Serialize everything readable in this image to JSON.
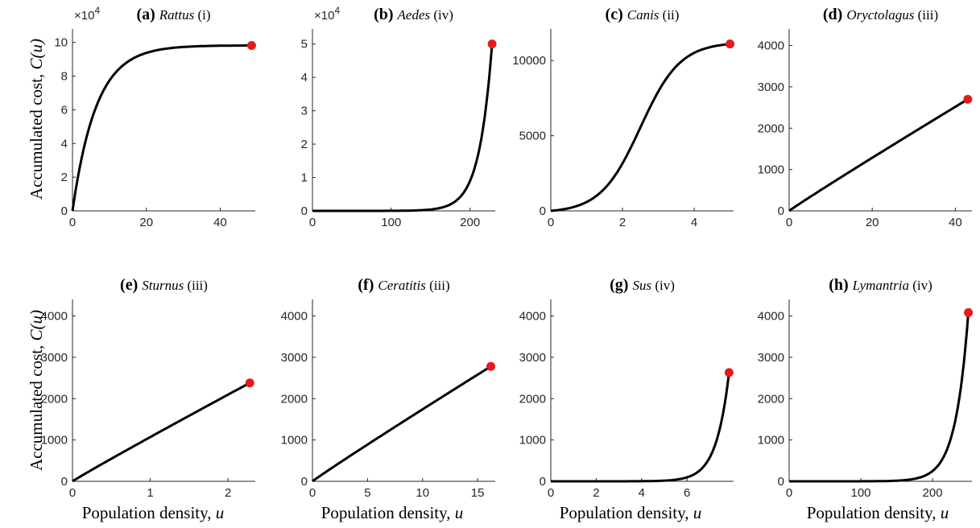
{
  "figure": {
    "ylabel_text": "Accumulated cost, ",
    "ylabel_symbol": "C(u)",
    "xlabel_text": "Population density, ",
    "xlabel_symbol": "u"
  },
  "colors": {
    "curve": "#000000",
    "endpoint": "#e41a1c",
    "axis": "#262626"
  },
  "chart_data": [
    {
      "type": "line",
      "panel": "a",
      "letter": "(a)",
      "genus": "Rattus",
      "roman": "(i)",
      "model": "saturating",
      "exponent_label": "×10",
      "exponent_power": "4",
      "xlim": [
        0,
        49.5
      ],
      "ylim": [
        0,
        108000
      ],
      "xticks": [
        0,
        20,
        40
      ],
      "xticklabels": [
        "0",
        "20",
        "40"
      ],
      "yticks": [
        0,
        20000,
        40000,
        60000,
        80000,
        100000
      ],
      "yticklabels": [
        "0",
        "2",
        "4",
        "6",
        "8",
        "10"
      ],
      "endpoint": {
        "x": 48.5,
        "y": 98200
      }
    },
    {
      "type": "line",
      "panel": "b",
      "letter": "(b)",
      "genus": "Aedes",
      "roman": "(iv)",
      "model": "convex",
      "exponent_label": "×10",
      "exponent_power": "4",
      "xlim": [
        0,
        232
      ],
      "ylim": [
        0,
        54500
      ],
      "xticks": [
        0,
        100,
        200
      ],
      "xticklabels": [
        "0",
        "100",
        "200"
      ],
      "yticks": [
        0,
        10000,
        20000,
        30000,
        40000,
        50000
      ],
      "yticklabels": [
        "0",
        "1",
        "2",
        "3",
        "4",
        "5"
      ],
      "endpoint": {
        "x": 228,
        "y": 50000
      }
    },
    {
      "type": "line",
      "panel": "c",
      "letter": "(c)",
      "genus": "Canis",
      "roman": "(ii)",
      "model": "sigmoid",
      "xlim": [
        0,
        5.1
      ],
      "ylim": [
        0,
        12100
      ],
      "xticks": [
        0,
        2,
        4
      ],
      "xticklabels": [
        "0",
        "2",
        "4"
      ],
      "yticks": [
        0,
        5000,
        10000
      ],
      "yticklabels": [
        "0",
        "5000",
        "10000"
      ],
      "endpoint": {
        "x": 5.0,
        "y": 11100
      }
    },
    {
      "type": "line",
      "panel": "d",
      "letter": "(d)",
      "genus": "Oryctolagus",
      "roman": "(iii)",
      "model": "linear",
      "xlim": [
        0,
        44
      ],
      "ylim": [
        0,
        4400
      ],
      "xticks": [
        0,
        20,
        40
      ],
      "xticklabels": [
        "0",
        "20",
        "40"
      ],
      "yticks": [
        0,
        1000,
        2000,
        3000,
        4000
      ],
      "yticklabels": [
        "0",
        "1000",
        "2000",
        "3000",
        "4000"
      ],
      "endpoint": {
        "x": 43,
        "y": 2700
      }
    },
    {
      "type": "line",
      "panel": "e",
      "letter": "(e)",
      "genus": "Sturnus",
      "roman": "(iii)",
      "model": "linear",
      "xlim": [
        0,
        2.35
      ],
      "ylim": [
        0,
        4400
      ],
      "xticks": [
        0,
        1,
        2
      ],
      "xticklabels": [
        "0",
        "1",
        "2"
      ],
      "yticks": [
        0,
        1000,
        2000,
        3000,
        4000
      ],
      "yticklabels": [
        "0",
        "1000",
        "2000",
        "3000",
        "4000"
      ],
      "endpoint": {
        "x": 2.28,
        "y": 2380
      }
    },
    {
      "type": "line",
      "panel": "f",
      "letter": "(f)",
      "genus": "Ceratitis",
      "roman": "(iii)",
      "model": "linear",
      "xlim": [
        0,
        16.6
      ],
      "ylim": [
        0,
        4400
      ],
      "xticks": [
        0,
        5,
        10,
        15
      ],
      "xticklabels": [
        "0",
        "5",
        "10",
        "15"
      ],
      "yticks": [
        0,
        1000,
        2000,
        3000,
        4000
      ],
      "yticklabels": [
        "0",
        "1000",
        "2000",
        "3000",
        "4000"
      ],
      "endpoint": {
        "x": 16.2,
        "y": 2780
      }
    },
    {
      "type": "line",
      "panel": "g",
      "letter": "(g)",
      "genus": "Sus",
      "roman": "(iv)",
      "model": "convex",
      "xlim": [
        0,
        8.05
      ],
      "ylim": [
        0,
        4400
      ],
      "xticks": [
        0,
        2,
        4,
        6
      ],
      "xticklabels": [
        "0",
        "2",
        "4",
        "6"
      ],
      "yticks": [
        0,
        1000,
        2000,
        3000,
        4000
      ],
      "yticklabels": [
        "0",
        "1000",
        "2000",
        "3000",
        "4000"
      ],
      "endpoint": {
        "x": 7.85,
        "y": 2630
      }
    },
    {
      "type": "line",
      "panel": "h",
      "letter": "(h)",
      "genus": "Lymantria",
      "roman": "(iv)",
      "model": "convex",
      "xlim": [
        0,
        255
      ],
      "ylim": [
        0,
        4400
      ],
      "xticks": [
        0,
        100,
        200
      ],
      "xticklabels": [
        "0",
        "100",
        "200"
      ],
      "yticks": [
        0,
        1000,
        2000,
        3000,
        4000
      ],
      "yticklabels": [
        "0",
        "1000",
        "2000",
        "3000",
        "4000"
      ],
      "endpoint": {
        "x": 250,
        "y": 4080
      }
    }
  ]
}
